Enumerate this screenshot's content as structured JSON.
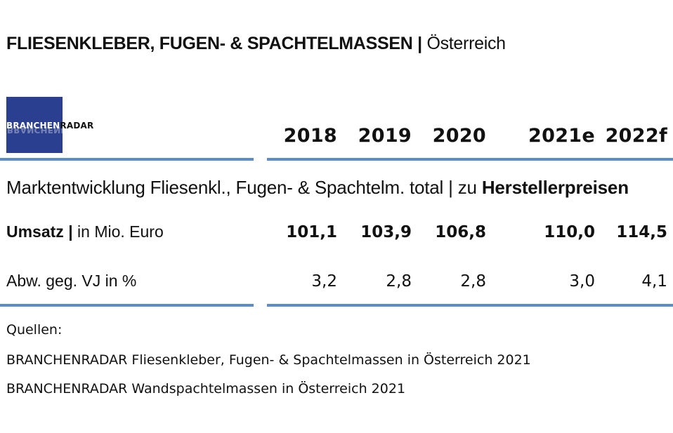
{
  "title": {
    "bold": "FLIESENKLEBER, FUGEN- & SPACHTELMASSEN |",
    "light": " Österreich"
  },
  "logo": {
    "part1": "BRANCHEN",
    "part2": "RADAR"
  },
  "columns": [
    "2018",
    "2019",
    "2020",
    "2021e",
    "2022f"
  ],
  "subtitle": {
    "text": "Marktentwicklung Fliesenkl., Fugen- & Spachtelm. total | zu ",
    "bold": "Herstellerpreisen"
  },
  "rows": [
    {
      "label_bold": "Umsatz |",
      "label_rest": " in Mio. Euro",
      "values": [
        "101,1",
        "103,9",
        "106,8",
        "110,0",
        "114,5"
      ]
    },
    {
      "label": "Abw. geg. VJ in %",
      "values": [
        "3,2",
        "2,8",
        "2,8",
        "3,0",
        "4,1"
      ]
    }
  ],
  "sources": {
    "heading": "Quellen:",
    "items": [
      "BRANCHENRADAR Fliesenkleber, Fugen- & Spachtelmassen in Österreich 2021",
      "BRANCHENRADAR Wandspachtelmassen in Österreich 2021"
    ]
  },
  "colors": {
    "rule": "#5b8ccb",
    "logo_bg": "#2b3f90"
  }
}
